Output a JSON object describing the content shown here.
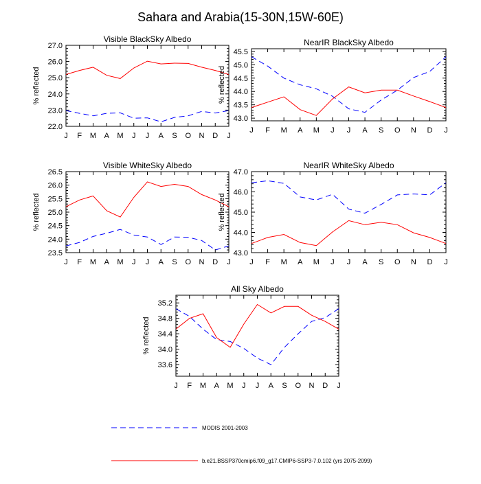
{
  "figure_title": "Sahara and Arabia(15-30N,15W-60E)",
  "legend": {
    "modis_label": "MODIS 2001-2003",
    "model_label": "b.e21.BSSP370cmip6.f09_g17.CMIP6-SSP3-7.0.102 (yrs 2075-2099)"
  },
  "colors": {
    "modis": "#0000ff",
    "model": "#ff0000",
    "axis": "#000000"
  },
  "chart_data": [
    {
      "id": "visible-blacksky",
      "type": "line",
      "title": "Visible BlackSky Albedo",
      "ylabel": "% reflected",
      "xlabel": "",
      "categories": [
        "J",
        "F",
        "M",
        "A",
        "M",
        "J",
        "J",
        "A",
        "S",
        "O",
        "N",
        "D",
        "J"
      ],
      "ylim": [
        22.0,
        27.0
      ],
      "yticks": [
        22.0,
        23.0,
        24.0,
        25.0,
        26.0,
        27.0
      ],
      "ytick_labels": [
        "22.0",
        "23.0",
        "24.0",
        "25.0",
        "26.0",
        "27.0"
      ],
      "series": [
        {
          "name": "MODIS 2001-2003",
          "style": "dashed",
          "color": "#0000ff",
          "values": [
            22.97,
            22.8,
            22.65,
            22.8,
            22.83,
            22.5,
            22.52,
            22.28,
            22.55,
            22.65,
            22.92,
            22.82,
            22.97
          ]
        },
        {
          "name": "b.e21.BSSP370cmip6.f09_g17.CMIP6-SSP3-7.0.102 (yrs 2075-2099)",
          "style": "solid",
          "color": "#ff0000",
          "values": [
            25.2,
            25.45,
            25.65,
            25.15,
            24.95,
            25.6,
            26.02,
            25.85,
            25.9,
            25.88,
            25.65,
            25.45,
            25.2
          ]
        }
      ]
    },
    {
      "id": "nearir-blacksky",
      "type": "line",
      "title": "NearIR BlackSky Albedo",
      "ylabel": "% reflected",
      "xlabel": "",
      "categories": [
        "J",
        "F",
        "M",
        "A",
        "M",
        "J",
        "J",
        "A",
        "S",
        "O",
        "N",
        "D",
        "J"
      ],
      "ylim": [
        42.9,
        45.6
      ],
      "yticks": [
        43.0,
        43.5,
        44.0,
        44.5,
        45.0,
        45.5
      ],
      "ytick_labels": [
        "43.0",
        "43.5",
        "44.0",
        "44.5",
        "45.0",
        "45.5"
      ],
      "series": [
        {
          "name": "MODIS 2001-2003",
          "style": "dashed",
          "color": "#0000ff",
          "values": [
            45.3,
            44.95,
            44.5,
            44.25,
            44.1,
            43.82,
            43.35,
            43.22,
            43.68,
            44.05,
            44.52,
            44.75,
            45.3
          ]
        },
        {
          "name": "b.e21.BSSP370cmip6.f09_g17.CMIP6-SSP3-7.0.102 (yrs 2075-2099)",
          "style": "solid",
          "color": "#ff0000",
          "values": [
            43.4,
            43.6,
            43.8,
            43.32,
            43.1,
            43.72,
            44.17,
            43.95,
            44.05,
            44.05,
            43.83,
            43.62,
            43.4
          ]
        }
      ]
    },
    {
      "id": "visible-whitesky",
      "type": "line",
      "title": "Visible WhiteSky Albedo",
      "ylabel": "% reflected",
      "xlabel": "",
      "categories": [
        "J",
        "F",
        "M",
        "A",
        "M",
        "J",
        "J",
        "A",
        "S",
        "O",
        "N",
        "D",
        "J"
      ],
      "ylim": [
        23.5,
        26.5
      ],
      "yticks": [
        23.5,
        24.0,
        24.5,
        25.0,
        25.5,
        26.0,
        26.5
      ],
      "ytick_labels": [
        "23.5",
        "24.0",
        "24.5",
        "25.0",
        "25.5",
        "26.0",
        "26.5"
      ],
      "series": [
        {
          "name": "MODIS 2001-2003",
          "style": "dashed",
          "color": "#0000ff",
          "values": [
            23.75,
            23.88,
            24.1,
            24.22,
            24.36,
            24.15,
            24.08,
            23.8,
            24.08,
            24.07,
            23.95,
            23.6,
            23.75
          ]
        },
        {
          "name": "b.e21.BSSP370cmip6.f09_g17.CMIP6-SSP3-7.0.102 (yrs 2075-2099)",
          "style": "solid",
          "color": "#ff0000",
          "values": [
            25.2,
            25.45,
            25.6,
            25.05,
            24.82,
            25.55,
            26.12,
            25.95,
            26.03,
            25.95,
            25.65,
            25.45,
            25.2
          ]
        }
      ]
    },
    {
      "id": "nearir-whitesky",
      "type": "line",
      "title": "NearIR WhiteSky Albedo",
      "ylabel": "% reflected",
      "xlabel": "",
      "categories": [
        "J",
        "F",
        "M",
        "A",
        "M",
        "J",
        "J",
        "A",
        "S",
        "O",
        "N",
        "D",
        "J"
      ],
      "ylim": [
        43.0,
        47.0
      ],
      "yticks": [
        43.0,
        44.0,
        45.0,
        46.0,
        47.0
      ],
      "ytick_labels": [
        "43.0",
        "44.0",
        "45.0",
        "46.0",
        "47.0"
      ],
      "series": [
        {
          "name": "MODIS 2001-2003",
          "style": "dashed",
          "color": "#0000ff",
          "values": [
            46.45,
            46.55,
            46.42,
            45.75,
            45.6,
            45.88,
            45.15,
            44.95,
            45.38,
            45.85,
            45.9,
            45.85,
            46.45
          ]
        },
        {
          "name": "b.e21.BSSP370cmip6.f09_g17.CMIP6-SSP3-7.0.102 (yrs 2075-2099)",
          "style": "solid",
          "color": "#ff0000",
          "values": [
            43.45,
            43.75,
            43.9,
            43.5,
            43.35,
            44.02,
            44.58,
            44.38,
            44.5,
            44.38,
            43.98,
            43.75,
            43.45
          ]
        }
      ]
    },
    {
      "id": "all-sky",
      "type": "line",
      "title": "All Sky Albedo",
      "ylabel": "% reflected",
      "xlabel": "",
      "categories": [
        "J",
        "F",
        "M",
        "A",
        "M",
        "J",
        "J",
        "A",
        "S",
        "O",
        "N",
        "D",
        "J"
      ],
      "ylim": [
        33.3,
        35.4
      ],
      "yticks": [
        33.6,
        34.0,
        34.4,
        34.8,
        35.2
      ],
      "ytick_labels": [
        "33.6",
        "34.0",
        "34.4",
        "34.8",
        "35.2"
      ],
      "series": [
        {
          "name": "MODIS 2001-2003",
          "style": "dashed",
          "color": "#0000ff",
          "values": [
            35.05,
            34.85,
            34.52,
            34.25,
            34.2,
            34.02,
            33.77,
            33.6,
            34.05,
            34.4,
            34.72,
            34.82,
            35.05
          ]
        },
        {
          "name": "b.e21.BSSP370cmip6.f09_g17.CMIP6-SSP3-7.0.102 (yrs 2075-2099)",
          "style": "solid",
          "color": "#ff0000",
          "values": [
            34.52,
            34.8,
            34.92,
            34.3,
            34.05,
            34.65,
            35.16,
            34.94,
            35.11,
            35.11,
            34.88,
            34.72,
            34.52
          ]
        }
      ]
    }
  ]
}
